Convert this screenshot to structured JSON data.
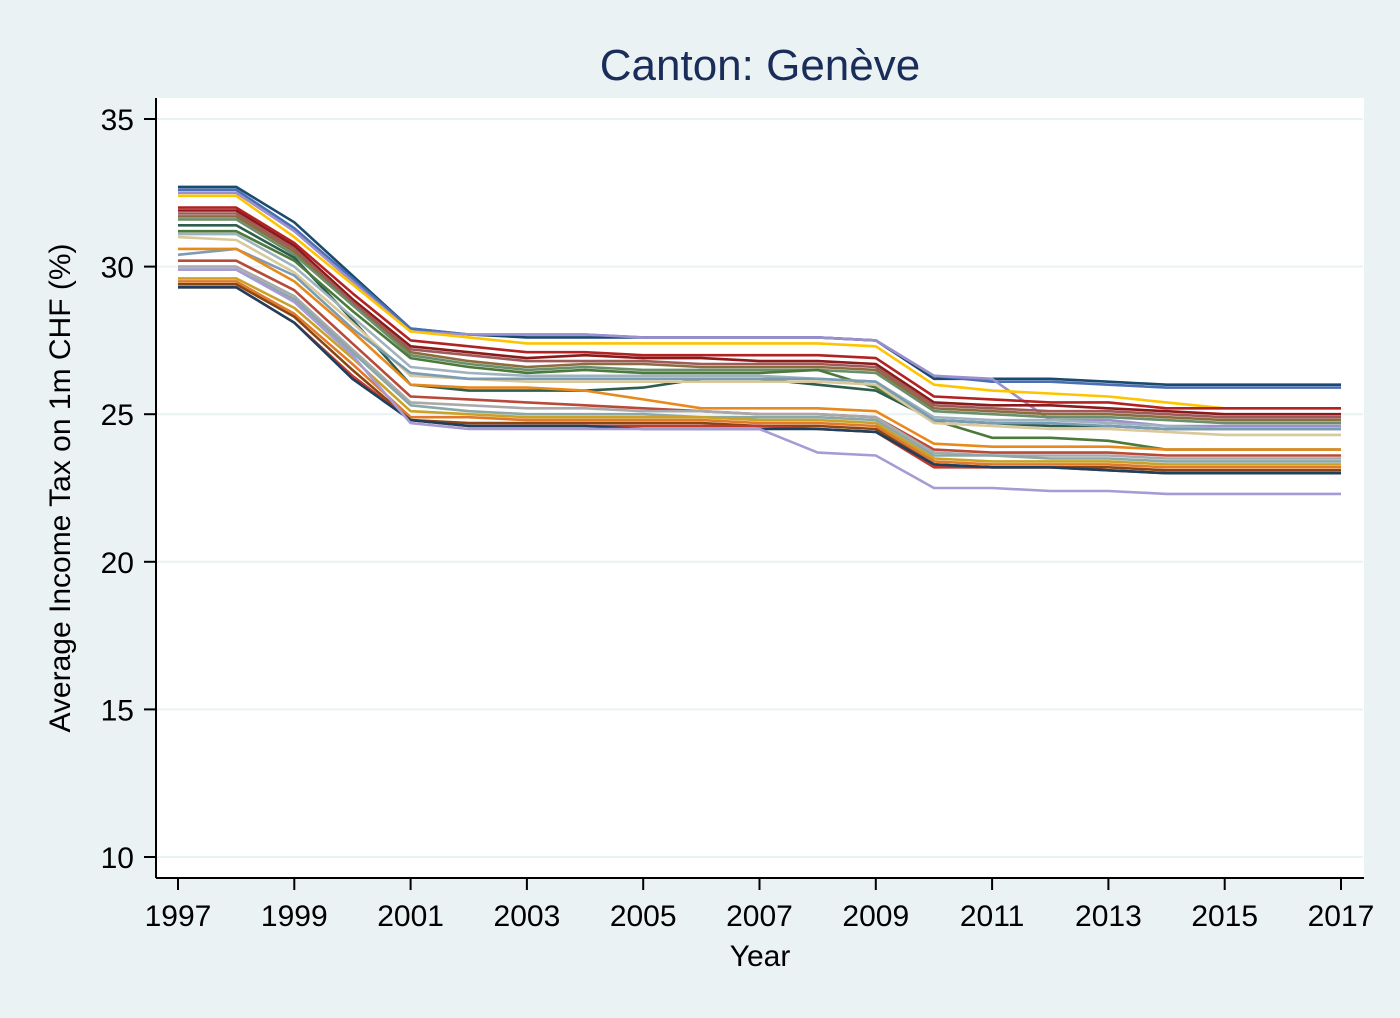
{
  "chart_data": {
    "type": "line",
    "title": "Canton: Genève",
    "xlabel": "Year",
    "ylabel": "Average Income Tax on 1m CHF (%)",
    "xlim": [
      1997,
      2017
    ],
    "ylim": [
      10,
      35
    ],
    "xticks": [
      1997,
      1999,
      2001,
      2003,
      2005,
      2007,
      2009,
      2011,
      2013,
      2015,
      2017
    ],
    "yticks": [
      10,
      15,
      20,
      25,
      30,
      35
    ],
    "grid": true,
    "legend": "none",
    "x": [
      1997,
      1998,
      1999,
      2000,
      2001,
      2002,
      2003,
      2004,
      2005,
      2006,
      2007,
      2008,
      2009,
      2010,
      2011,
      2012,
      2013,
      2014,
      2015,
      2016,
      2017
    ],
    "series": [
      {
        "color": "#1a4a6e",
        "values": [
          32.7,
          32.7,
          31.5,
          29.7,
          27.9,
          27.7,
          27.6,
          27.6,
          27.6,
          27.6,
          27.6,
          27.6,
          27.5,
          26.2,
          26.2,
          26.2,
          26.1,
          26.0,
          26.0,
          26.0,
          26.0
        ]
      },
      {
        "color": "#4a6fb5",
        "values": [
          32.6,
          32.6,
          31.3,
          29.6,
          27.9,
          27.7,
          27.7,
          27.7,
          27.6,
          27.6,
          27.6,
          27.6,
          27.5,
          26.3,
          26.1,
          26.1,
          26.0,
          25.9,
          25.9,
          25.9,
          25.9
        ]
      },
      {
        "color": "#9c8fce",
        "values": [
          32.5,
          32.5,
          31.2,
          29.5,
          27.8,
          27.7,
          27.7,
          27.7,
          27.6,
          27.6,
          27.6,
          27.6,
          27.5,
          26.3,
          26.2,
          24.8,
          24.8,
          24.6,
          24.6,
          24.6,
          24.6
        ]
      },
      {
        "color": "#ffc400",
        "values": [
          32.4,
          32.4,
          31.0,
          29.4,
          27.8,
          27.6,
          27.4,
          27.4,
          27.4,
          27.4,
          27.4,
          27.4,
          27.3,
          26.0,
          25.8,
          25.7,
          25.6,
          25.4,
          25.2,
          25.2,
          25.2
        ]
      },
      {
        "color": "#b22222",
        "values": [
          32.0,
          32.0,
          30.8,
          29.1,
          27.5,
          27.3,
          27.1,
          27.1,
          27.0,
          27.0,
          27.0,
          27.0,
          26.9,
          25.6,
          25.5,
          25.4,
          25.4,
          25.2,
          25.2,
          25.2,
          25.2
        ]
      },
      {
        "color": "#8b1a1a",
        "values": [
          31.9,
          31.9,
          30.7,
          28.9,
          27.3,
          27.1,
          26.9,
          27.0,
          26.9,
          26.9,
          26.8,
          26.8,
          26.7,
          25.4,
          25.3,
          25.3,
          25.2,
          25.1,
          25.0,
          25.0,
          25.0
        ]
      },
      {
        "color": "#a05a5a",
        "values": [
          31.8,
          31.8,
          30.6,
          28.8,
          27.2,
          27.0,
          26.8,
          26.8,
          26.8,
          26.7,
          26.7,
          26.7,
          26.6,
          25.3,
          25.2,
          25.1,
          25.1,
          25.0,
          24.9,
          24.9,
          24.9
        ]
      },
      {
        "color": "#8c6d3f",
        "values": [
          31.7,
          31.7,
          30.5,
          28.7,
          27.1,
          26.8,
          26.6,
          26.7,
          26.7,
          26.6,
          26.6,
          26.6,
          26.5,
          25.2,
          25.1,
          25.0,
          25.0,
          24.9,
          24.8,
          24.8,
          24.8
        ]
      },
      {
        "color": "#6b8e6b",
        "values": [
          31.6,
          31.6,
          30.4,
          28.7,
          27.0,
          26.7,
          26.5,
          26.6,
          26.5,
          26.5,
          26.5,
          26.5,
          26.4,
          25.1,
          25.0,
          24.9,
          24.9,
          24.8,
          24.7,
          24.7,
          24.7
        ]
      },
      {
        "color": "#2e5e4e",
        "values": [
          31.4,
          31.4,
          30.3,
          28.2,
          26.0,
          25.8,
          25.8,
          25.8,
          25.9,
          26.2,
          26.2,
          26.0,
          25.8,
          24.8,
          24.7,
          24.6,
          24.6,
          24.5,
          24.5,
          24.5,
          24.5
        ]
      },
      {
        "color": "#4c7a3a",
        "values": [
          31.2,
          31.2,
          30.2,
          28.5,
          26.9,
          26.6,
          26.4,
          26.5,
          26.4,
          26.4,
          26.4,
          26.5,
          25.9,
          24.8,
          24.2,
          24.2,
          24.1,
          23.8,
          23.8,
          23.8,
          23.8
        ]
      },
      {
        "color": "#9fb3bf",
        "values": [
          31.1,
          31.1,
          30.0,
          28.3,
          26.6,
          26.4,
          26.3,
          26.3,
          26.3,
          26.3,
          26.3,
          26.2,
          26.1,
          24.9,
          24.8,
          24.8,
          24.7,
          24.6,
          24.5,
          24.5,
          24.5
        ]
      },
      {
        "color": "#d9c89a",
        "values": [
          31.0,
          30.9,
          29.8,
          28.1,
          26.3,
          26.2,
          26.1,
          26.1,
          26.1,
          26.1,
          26.1,
          26.1,
          26.0,
          24.7,
          24.6,
          24.5,
          24.5,
          24.4,
          24.3,
          24.3,
          24.3
        ]
      },
      {
        "color": "#7b9cb5",
        "values": [
          30.4,
          30.6,
          29.7,
          27.9,
          26.4,
          26.2,
          26.2,
          26.2,
          26.2,
          26.2,
          26.2,
          26.2,
          26.1,
          24.8,
          24.7,
          24.7,
          24.6,
          24.5,
          24.5,
          24.5,
          24.5
        ]
      },
      {
        "color": "#e8891c",
        "values": [
          30.6,
          30.6,
          29.5,
          27.8,
          26.0,
          25.9,
          25.9,
          25.8,
          25.5,
          25.2,
          25.2,
          25.2,
          25.1,
          24.0,
          23.9,
          23.9,
          23.9,
          23.8,
          23.8,
          23.8,
          23.8
        ]
      },
      {
        "color": "#b84a3a",
        "values": [
          30.2,
          30.2,
          29.2,
          27.4,
          25.6,
          25.5,
          25.4,
          25.3,
          25.2,
          25.1,
          25.0,
          25.0,
          24.9,
          23.8,
          23.7,
          23.7,
          23.7,
          23.6,
          23.6,
          23.6,
          23.6
        ]
      },
      {
        "color": "#a9a9a9",
        "values": [
          30.0,
          30.0,
          29.0,
          27.2,
          25.4,
          25.3,
          25.2,
          25.2,
          25.1,
          25.1,
          25.0,
          25.0,
          24.9,
          23.7,
          23.6,
          23.6,
          23.6,
          23.5,
          23.5,
          23.5,
          23.5
        ]
      },
      {
        "color": "#8aa8a8",
        "values": [
          29.9,
          29.9,
          28.9,
          27.1,
          25.3,
          25.1,
          25.0,
          25.0,
          25.0,
          24.9,
          24.9,
          24.9,
          24.8,
          23.6,
          23.6,
          23.5,
          23.5,
          23.4,
          23.4,
          23.4,
          23.4
        ]
      },
      {
        "color": "#c9a227",
        "values": [
          29.6,
          29.6,
          28.6,
          26.9,
          25.1,
          25.0,
          24.9,
          24.9,
          24.9,
          24.9,
          24.8,
          24.8,
          24.7,
          23.5,
          23.4,
          23.4,
          23.4,
          23.3,
          23.3,
          23.3,
          23.3
        ]
      },
      {
        "color": "#e07a2a",
        "values": [
          29.5,
          29.5,
          28.4,
          26.7,
          24.9,
          24.9,
          24.8,
          24.8,
          24.8,
          24.8,
          24.7,
          24.7,
          24.6,
          23.4,
          23.3,
          23.3,
          23.3,
          23.2,
          23.2,
          23.2,
          23.2
        ]
      },
      {
        "color": "#8b4513",
        "values": [
          29.4,
          29.4,
          28.3,
          26.5,
          24.8,
          24.7,
          24.7,
          24.7,
          24.7,
          24.7,
          24.6,
          24.6,
          24.5,
          23.3,
          23.2,
          23.2,
          23.2,
          23.1,
          23.1,
          23.1,
          23.1
        ]
      },
      {
        "color": "#c0392b",
        "values": [
          29.3,
          29.3,
          28.1,
          26.3,
          24.8,
          24.6,
          24.6,
          24.6,
          24.6,
          24.6,
          24.6,
          24.5,
          24.4,
          23.2,
          23.2,
          23.2,
          23.1,
          23.0,
          23.0,
          23.0,
          23.0
        ]
      },
      {
        "color": "#1f3f5f",
        "values": [
          29.3,
          29.3,
          28.1,
          26.2,
          24.8,
          24.6,
          24.6,
          24.6,
          24.5,
          24.5,
          24.5,
          24.5,
          24.4,
          23.3,
          23.2,
          23.2,
          23.1,
          23.0,
          23.0,
          23.0,
          23.0
        ]
      },
      {
        "color": "#a79bd6",
        "values": [
          29.9,
          29.9,
          28.8,
          27.0,
          24.7,
          24.5,
          24.5,
          24.5,
          24.5,
          24.5,
          24.5,
          23.7,
          23.6,
          22.5,
          22.5,
          22.4,
          22.4,
          22.3,
          22.3,
          22.3,
          22.3
        ]
      }
    ]
  }
}
